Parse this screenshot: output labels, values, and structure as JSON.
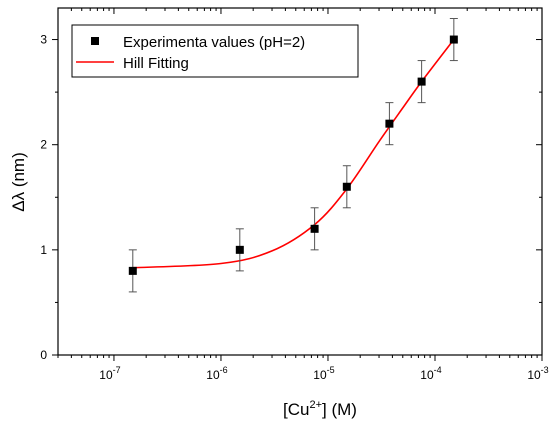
{
  "chart_data": {
    "type": "scatter",
    "xlabel": "[Cu2+] (M)",
    "xlabel_parts": {
      "pre": "[Cu",
      "sup": "2+",
      "post": "] (M)"
    },
    "ylabel": "Δλ (nm)",
    "xscale": "log",
    "xlim": [
      3e-08,
      0.001
    ],
    "ylim": [
      0,
      3.3
    ],
    "x_ticks": [
      1e-07,
      1e-06,
      1e-05,
      0.0001,
      0.001
    ],
    "x_tick_labels": [
      {
        "base": "10",
        "exp": "-7"
      },
      {
        "base": "10",
        "exp": "-6"
      },
      {
        "base": "10",
        "exp": "-5"
      },
      {
        "base": "10",
        "exp": "-4"
      },
      {
        "base": "10",
        "exp": "-3"
      }
    ],
    "y_ticks": [
      0,
      1,
      2,
      3
    ],
    "y_tick_labels": [
      "0",
      "1",
      "2",
      "3"
    ],
    "grid": false,
    "legend_position": "top-left",
    "series": [
      {
        "name": "Experimenta values (pH=2)",
        "kind": "scatter",
        "marker": "square",
        "color": "#000000",
        "x": [
          1.5e-07,
          1.5e-06,
          7.5e-06,
          1.5e-05,
          3.75e-05,
          7.5e-05,
          0.00015
        ],
        "y": [
          0.8,
          1.0,
          1.2,
          1.6,
          2.2,
          2.6,
          3.0
        ],
        "error": [
          0.2,
          0.2,
          0.2,
          0.2,
          0.2,
          0.2,
          0.2
        ]
      },
      {
        "name": "Hill Fitting",
        "kind": "line",
        "color": "#ff0000",
        "x": [
          1.5e-07,
          1e-06,
          3e-06,
          7.5e-06,
          1.5e-05,
          3e-05,
          5e-05,
          7.5e-05,
          0.00015
        ],
        "y": [
          0.83,
          0.87,
          0.99,
          1.24,
          1.58,
          2.03,
          2.35,
          2.6,
          3.0
        ]
      }
    ]
  }
}
